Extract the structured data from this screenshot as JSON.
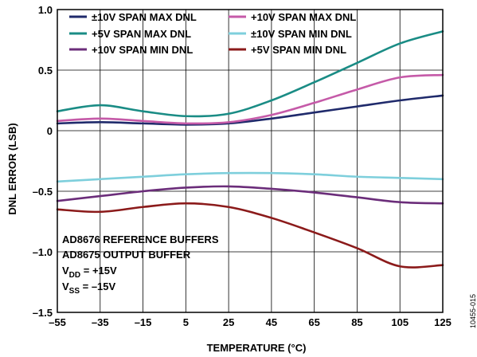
{
  "chart_data": {
    "type": "line",
    "xlabel": "TEMPERATURE (°C)",
    "ylabel": "DNL ERROR (LSB)",
    "xlim": [
      -55,
      125
    ],
    "ylim": [
      -1.5,
      1.0
    ],
    "x_ticks": [
      -55,
      -35,
      -15,
      5,
      25,
      45,
      65,
      85,
      105,
      125
    ],
    "x_tick_labels": [
      "–55",
      "–35",
      "–15",
      "5",
      "25",
      "45",
      "65",
      "85",
      "105",
      "125"
    ],
    "y_ticks": [
      -1.5,
      -1.0,
      -0.5,
      0,
      0.5,
      1.0
    ],
    "y_tick_labels": [
      "–1.5",
      "–1.0",
      "–0.5",
      "0",
      "0.5",
      "1.0"
    ],
    "grid": true,
    "legend_placement": "top",
    "series": [
      {
        "name": "±10V SPAN MAX DNL",
        "color": "#1f2a6b",
        "x": [
          -55,
          -35,
          -15,
          5,
          25,
          45,
          65,
          85,
          105,
          125
        ],
        "y": [
          0.06,
          0.07,
          0.06,
          0.05,
          0.06,
          0.1,
          0.15,
          0.2,
          0.25,
          0.29
        ]
      },
      {
        "name": "+10V SPAN MAX DNL",
        "color": "#c55aa8",
        "x": [
          -55,
          -35,
          -15,
          5,
          25,
          45,
          65,
          85,
          105,
          125
        ],
        "y": [
          0.08,
          0.1,
          0.08,
          0.06,
          0.07,
          0.13,
          0.23,
          0.34,
          0.44,
          0.46
        ]
      },
      {
        "name": "+5V SPAN MAX DNL",
        "color": "#1a8c85",
        "x": [
          -55,
          -35,
          -15,
          5,
          25,
          45,
          65,
          85,
          105,
          125
        ],
        "y": [
          0.16,
          0.21,
          0.16,
          0.12,
          0.14,
          0.25,
          0.4,
          0.56,
          0.72,
          0.82
        ]
      },
      {
        "name": "±10V SPAN MIN DNL",
        "color": "#7ecfdc",
        "x": [
          -55,
          -35,
          -15,
          5,
          25,
          45,
          65,
          85,
          105,
          125
        ],
        "y": [
          -0.42,
          -0.4,
          -0.38,
          -0.36,
          -0.35,
          -0.35,
          -0.36,
          -0.38,
          -0.39,
          -0.4
        ]
      },
      {
        "name": "+10V SPAN MIN DNL",
        "color": "#6b2d7a",
        "x": [
          -55,
          -35,
          -15,
          5,
          25,
          45,
          65,
          85,
          105,
          125
        ],
        "y": [
          -0.58,
          -0.54,
          -0.5,
          -0.47,
          -0.46,
          -0.48,
          -0.51,
          -0.55,
          -0.59,
          -0.6
        ]
      },
      {
        "name": "+5V SPAN MIN DNL",
        "color": "#8b1a1a",
        "x": [
          -55,
          -35,
          -15,
          5,
          25,
          45,
          65,
          85,
          105,
          125
        ],
        "y": [
          -0.65,
          -0.67,
          -0.63,
          -0.6,
          -0.63,
          -0.72,
          -0.84,
          -0.97,
          -1.12,
          -1.11
        ]
      }
    ],
    "annotations": [
      {
        "id": "anno1",
        "text": "AD8676 REFERENCE BUFFERS"
      },
      {
        "id": "anno2",
        "text": "AD8675 OUTPUT BUFFER"
      },
      {
        "id": "anno3",
        "main": "V",
        "sub": "DD",
        "rest": " = +15V"
      },
      {
        "id": "anno4",
        "main": "V",
        "sub": "SS",
        "rest": " = –15V"
      }
    ],
    "figure_id": "10455-015"
  }
}
